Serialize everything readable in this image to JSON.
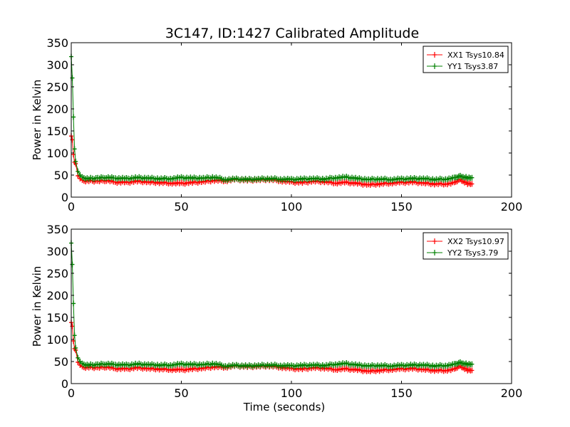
{
  "title": "3C147, ID:1427 Calibrated Amplitude",
  "colors": {
    "xx": "#ff0000",
    "yy": "#008000",
    "axis": "#000000"
  },
  "chart_data": [
    {
      "type": "line",
      "title": "3C147, ID:1427 Calibrated Amplitude",
      "xlabel": "",
      "ylabel": "Power in Kelvin",
      "xlim": [
        0,
        200
      ],
      "ylim": [
        0,
        350
      ],
      "xticks": [
        0,
        50,
        100,
        150,
        200
      ],
      "yticks": [
        0,
        50,
        100,
        150,
        200,
        250,
        300,
        350
      ],
      "grid": false,
      "legend": "top-right",
      "series": [
        {
          "name": "XX1 Tsys10.84",
          "color": "#ff0000",
          "x": [
            0,
            0.5,
            1,
            1.5,
            2,
            3,
            4,
            5,
            8,
            12,
            16,
            20,
            25,
            30,
            35,
            40,
            45,
            50,
            55,
            60,
            65,
            70,
            75,
            80,
            85,
            90,
            95,
            100,
            105,
            110,
            115,
            120,
            125,
            130,
            135,
            140,
            145,
            150,
            155,
            160,
            165,
            170,
            174,
            176,
            178,
            180,
            182
          ],
          "y": [
            140,
            130,
            95,
            80,
            75,
            50,
            42,
            37,
            37,
            36,
            38,
            34,
            33,
            36,
            34,
            33,
            32,
            31,
            33,
            35,
            38,
            37,
            40,
            38,
            39,
            40,
            37,
            34,
            33,
            36,
            35,
            32,
            33,
            31,
            28,
            30,
            32,
            33,
            34,
            32,
            30,
            30,
            32,
            40,
            35,
            31,
            30
          ]
        },
        {
          "name": "YY1 Tsys3.87",
          "color": "#008000",
          "x": [
            0,
            0.5,
            1,
            1.5,
            2,
            3,
            4,
            5,
            8,
            12,
            16,
            20,
            25,
            30,
            35,
            40,
            45,
            50,
            55,
            60,
            65,
            70,
            75,
            80,
            85,
            90,
            95,
            100,
            105,
            110,
            115,
            120,
            125,
            130,
            135,
            140,
            145,
            150,
            155,
            160,
            165,
            170,
            174,
            176,
            178,
            180,
            182
          ],
          "y": [
            320,
            270,
            180,
            110,
            80,
            60,
            50,
            44,
            42,
            43,
            45,
            43,
            42,
            44,
            43,
            42,
            42,
            44,
            43,
            43,
            45,
            40,
            41,
            40,
            41,
            42,
            41,
            40,
            41,
            42,
            41,
            44,
            45,
            42,
            40,
            41,
            40,
            41,
            42,
            42,
            40,
            41,
            43,
            48,
            45,
            44,
            44
          ]
        }
      ]
    },
    {
      "type": "line",
      "title": "",
      "xlabel": "Time (seconds)",
      "ylabel": "Power in Kelvin",
      "xlim": [
        0,
        200
      ],
      "ylim": [
        0,
        350
      ],
      "xticks": [
        0,
        50,
        100,
        150,
        200
      ],
      "yticks": [
        0,
        50,
        100,
        150,
        200,
        250,
        300,
        350
      ],
      "grid": false,
      "legend": "top-right",
      "series": [
        {
          "name": "XX2 Tsys10.97",
          "color": "#ff0000",
          "x": [
            0,
            0.5,
            1,
            1.5,
            2,
            3,
            4,
            5,
            8,
            12,
            16,
            20,
            25,
            30,
            35,
            40,
            45,
            50,
            55,
            60,
            65,
            70,
            75,
            80,
            85,
            90,
            95,
            100,
            105,
            110,
            115,
            120,
            125,
            130,
            135,
            140,
            145,
            150,
            155,
            160,
            165,
            170,
            174,
            176,
            178,
            180,
            182
          ],
          "y": [
            140,
            130,
            95,
            80,
            75,
            50,
            42,
            37,
            37,
            36,
            38,
            34,
            33,
            36,
            34,
            33,
            32,
            31,
            33,
            35,
            38,
            37,
            40,
            38,
            39,
            40,
            37,
            34,
            33,
            36,
            35,
            32,
            33,
            31,
            28,
            30,
            32,
            33,
            34,
            32,
            30,
            30,
            32,
            40,
            35,
            31,
            30
          ]
        },
        {
          "name": "YY2 Tsys3.79",
          "color": "#008000",
          "x": [
            0,
            0.5,
            1,
            1.5,
            2,
            3,
            4,
            5,
            8,
            12,
            16,
            20,
            25,
            30,
            35,
            40,
            45,
            50,
            55,
            60,
            65,
            70,
            75,
            80,
            85,
            90,
            95,
            100,
            105,
            110,
            115,
            120,
            125,
            130,
            135,
            140,
            145,
            150,
            155,
            160,
            165,
            170,
            174,
            176,
            178,
            180,
            182
          ],
          "y": [
            320,
            270,
            180,
            110,
            80,
            60,
            50,
            44,
            42,
            43,
            45,
            43,
            42,
            44,
            43,
            42,
            42,
            44,
            43,
            43,
            45,
            40,
            41,
            40,
            41,
            42,
            41,
            40,
            41,
            42,
            41,
            44,
            45,
            42,
            40,
            41,
            40,
            41,
            42,
            42,
            40,
            41,
            43,
            48,
            45,
            44,
            44
          ]
        }
      ]
    }
  ]
}
